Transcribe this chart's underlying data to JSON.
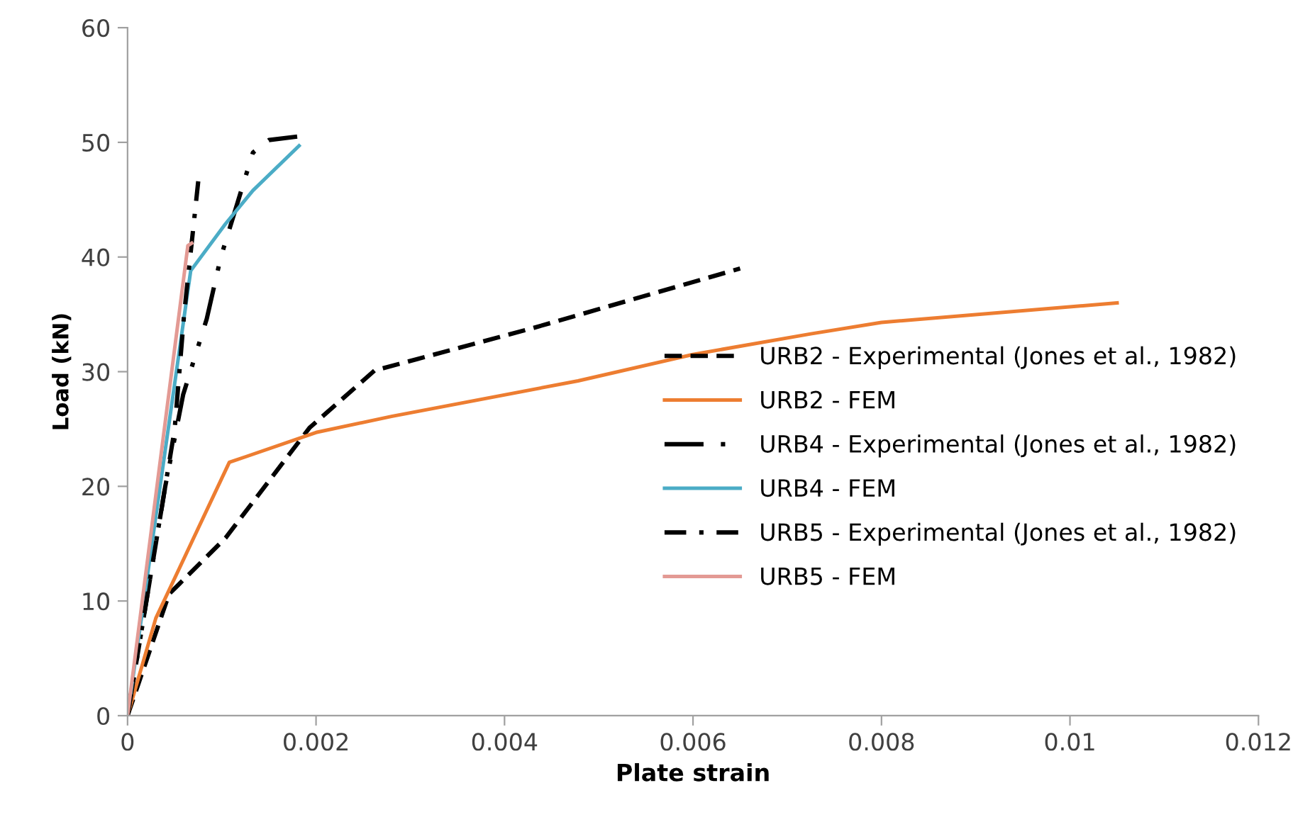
{
  "chart_data": {
    "type": "line",
    "xlabel": "Plate strain",
    "ylabel": "Load (kN)",
    "xlim": [
      0,
      0.012
    ],
    "xticks": [
      0,
      0.002,
      0.004,
      0.006,
      0.008,
      0.01,
      0.012
    ],
    "ylim": [
      0,
      60
    ],
    "yticks": [
      0,
      10,
      20,
      30,
      40,
      50,
      60
    ],
    "grid": false,
    "legend": "right",
    "marker": "none",
    "series": [
      {
        "name": "URB2 - Experimental (Jones et al., 1982)",
        "color": "#000000",
        "line_style": "dashed",
        "x": [
          0,
          0.00044,
          0.00104,
          0.00193,
          0.00262,
          0.0043,
          0.0065
        ],
        "values": [
          0,
          10.6,
          15.5,
          25.1,
          30.1,
          33.8,
          39
        ]
      },
      {
        "name": "URB2 - FEM",
        "color": "#ed7d31",
        "line_style": "solid",
        "x": [
          0,
          0.0003,
          0.00108,
          0.00126,
          0.002,
          0.0028,
          0.00478,
          0.006,
          0.00725,
          0.008,
          0.0105
        ],
        "values": [
          0,
          8.5,
          22.1,
          22.6,
          24.7,
          26.1,
          29.2,
          31.5,
          33.3,
          34.3,
          36
        ]
      },
      {
        "name": "URB4 - Experimental (Jones et al., 1982)",
        "color": "#000000",
        "line_style": "dashdotdot",
        "x": [
          0,
          0.0004,
          0.00059,
          0.00084,
          0.00099,
          0.00133,
          0.0015,
          0.0018
        ],
        "values": [
          0,
          20,
          28,
          34.6,
          40,
          49.1,
          50.2,
          50.5
        ]
      },
      {
        "name": "URB4 - FEM",
        "color": "#4bacc6",
        "line_style": "solid",
        "x": [
          0,
          0.00067,
          0.00104,
          0.00133,
          0.00182
        ],
        "values": [
          0,
          38.8,
          42.9,
          45.8,
          49.7
        ]
      },
      {
        "name": "URB5 - Experimental (Jones et al., 1982)",
        "color": "#000000",
        "line_style": "dashdot",
        "x": [
          0,
          0.0003,
          0.0005,
          0.0006,
          0.00075
        ],
        "values": [
          0,
          15,
          25,
          35,
          46.6
        ]
      },
      {
        "name": "URB5 - FEM",
        "color": "#e39a94",
        "line_style": "solid",
        "x": [
          0,
          0.00064,
          0.00068
        ],
        "values": [
          0,
          41,
          41.2
        ]
      }
    ]
  }
}
